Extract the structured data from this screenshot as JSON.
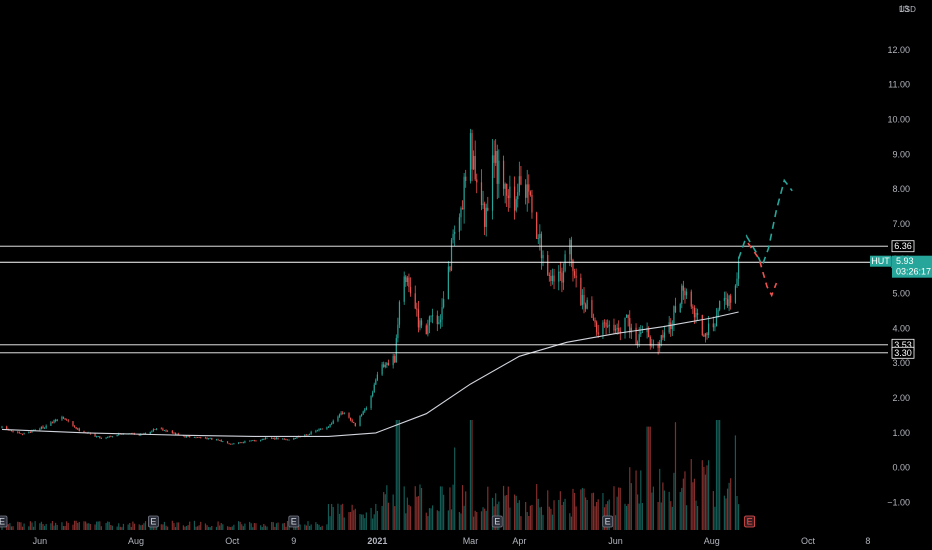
{
  "chart_data": {
    "type": "candlestick",
    "symbol": "HUT",
    "currency": "USD",
    "countdown": "03:26:17",
    "last_price": 5.93,
    "ylim": [
      -1.3,
      13.2
    ],
    "y_ticks": [
      12.0,
      11.0,
      10.0,
      9.0,
      8.0,
      7.0,
      6.0,
      5.0,
      4.0,
      3.0,
      2.0,
      1.0,
      0.0,
      -1.0
    ],
    "y_tick_labels": [
      "12.00",
      "11.00",
      "10.00",
      "9.00",
      "8.00",
      "7.00",
      "6.00",
      "5.00",
      "4.00",
      "3.00",
      "2.00",
      "1.00",
      "0.00",
      "−1.00"
    ],
    "top_clipped_label": "13",
    "x_ticks": [
      {
        "label": "Jun",
        "date": "2020-06-01"
      },
      {
        "label": "Aug",
        "date": "2020-08-01"
      },
      {
        "label": "Oct",
        "date": "2020-10-01"
      },
      {
        "label": "9",
        "date": "2020-11-09"
      },
      {
        "label": "2021",
        "date": "2021-01-01"
      },
      {
        "label": "Mar",
        "date": "2021-03-01"
      },
      {
        "label": "Apr",
        "date": "2021-04-01"
      },
      {
        "label": "Jun",
        "date": "2021-06-01"
      },
      {
        "label": "Aug",
        "date": "2021-08-01"
      },
      {
        "label": "Oct",
        "date": "2021-10-01"
      },
      {
        "label": "8",
        "date": "2021-11-08"
      }
    ],
    "horizontal_levels": [
      6.36,
      5.9,
      3.53,
      3.3
    ],
    "level_labels": [
      "6.36",
      "5.90",
      "3.53",
      "3.30"
    ],
    "price_path": [
      [
        "2020-05-08",
        1.15
      ],
      [
        "2020-05-20",
        0.95
      ],
      [
        "2020-06-05",
        1.2
      ],
      [
        "2020-06-15",
        1.45
      ],
      [
        "2020-06-25",
        1.1
      ],
      [
        "2020-07-10",
        0.85
      ],
      [
        "2020-07-25",
        1.0
      ],
      [
        "2020-08-05",
        0.95
      ],
      [
        "2020-08-15",
        1.15
      ],
      [
        "2020-08-30",
        0.9
      ],
      [
        "2020-09-15",
        0.85
      ],
      [
        "2020-09-30",
        0.7
      ],
      [
        "2020-10-10",
        0.75
      ],
      [
        "2020-10-25",
        0.85
      ],
      [
        "2020-11-05",
        0.8
      ],
      [
        "2020-11-20",
        1.0
      ],
      [
        "2020-12-01",
        1.2
      ],
      [
        "2020-12-10",
        1.6
      ],
      [
        "2020-12-18",
        1.2
      ],
      [
        "2020-12-28",
        2.0
      ],
      [
        "2021-01-03",
        3.0
      ],
      [
        "2021-01-08",
        2.9
      ],
      [
        "2021-01-12",
        3.2
      ],
      [
        "2021-01-16",
        5.2
      ],
      [
        "2021-01-20",
        5.6
      ],
      [
        "2021-01-25",
        4.5
      ],
      [
        "2021-01-30",
        3.8
      ],
      [
        "2021-02-04",
        4.3
      ],
      [
        "2021-02-09",
        4.1
      ],
      [
        "2021-02-14",
        5.2
      ],
      [
        "2021-02-19",
        7.0
      ],
      [
        "2021-02-24",
        7.6
      ],
      [
        "2021-02-28",
        9.5
      ],
      [
        "2021-03-04",
        8.6
      ],
      [
        "2021-03-10",
        7.0
      ],
      [
        "2021-03-16",
        8.8
      ],
      [
        "2021-03-22",
        8.2
      ],
      [
        "2021-03-28",
        7.7
      ],
      [
        "2021-04-03",
        8.2
      ],
      [
        "2021-04-09",
        7.4
      ],
      [
        "2021-04-15",
        6.2
      ],
      [
        "2021-04-21",
        5.6
      ],
      [
        "2021-04-27",
        5.5
      ],
      [
        "2021-05-03",
        6.2
      ],
      [
        "2021-05-09",
        5.0
      ],
      [
        "2021-05-15",
        4.6
      ],
      [
        "2021-05-21",
        4.0
      ],
      [
        "2021-05-27",
        4.2
      ],
      [
        "2021-06-02",
        3.9
      ],
      [
        "2021-06-08",
        4.2
      ],
      [
        "2021-06-14",
        3.7
      ],
      [
        "2021-06-20",
        4.0
      ],
      [
        "2021-06-26",
        3.4
      ],
      [
        "2021-07-02",
        3.8
      ],
      [
        "2021-07-08",
        4.4
      ],
      [
        "2021-07-14",
        5.2
      ],
      [
        "2021-07-20",
        4.5
      ],
      [
        "2021-07-26",
        3.9
      ],
      [
        "2021-08-01",
        4.0
      ],
      [
        "2021-08-07",
        4.7
      ],
      [
        "2021-08-13",
        4.9
      ],
      [
        "2021-08-18",
        5.93
      ]
    ],
    "moving_average": [
      [
        "2020-05-08",
        1.1
      ],
      [
        "2020-07-01",
        1.0
      ],
      [
        "2020-09-01",
        0.93
      ],
      [
        "2020-10-15",
        0.9
      ],
      [
        "2020-12-01",
        0.9
      ],
      [
        "2020-12-31",
        1.0
      ],
      [
        "2021-02-01",
        1.55
      ],
      [
        "2021-03-01",
        2.4
      ],
      [
        "2021-04-01",
        3.2
      ],
      [
        "2021-05-01",
        3.6
      ],
      [
        "2021-06-01",
        3.85
      ],
      [
        "2021-07-01",
        4.05
      ],
      [
        "2021-08-01",
        4.3
      ],
      [
        "2021-08-18",
        4.47
      ]
    ],
    "projection_up": [
      [
        "2021-08-18",
        6.0
      ],
      [
        "2021-08-23",
        6.65
      ],
      [
        "2021-08-29",
        6.2
      ],
      [
        "2021-09-02",
        5.8
      ],
      [
        "2021-09-06",
        6.3
      ],
      [
        "2021-09-11",
        7.4
      ],
      [
        "2021-09-16",
        8.25
      ],
      [
        "2021-09-21",
        7.95
      ]
    ],
    "projection_down": [
      [
        "2021-08-24",
        6.45
      ],
      [
        "2021-08-31",
        6.0
      ],
      [
        "2021-09-05",
        5.2
      ],
      [
        "2021-09-08",
        4.95
      ],
      [
        "2021-09-11",
        5.3
      ]
    ],
    "volume_scale_max": 10,
    "volume_spikes": [
      [
        "2021-01-14",
        10
      ],
      [
        "2021-02-20",
        7.5
      ],
      [
        "2021-03-01",
        10
      ],
      [
        "2021-06-22",
        9.4
      ],
      [
        "2021-07-10",
        9.8
      ],
      [
        "2021-08-05",
        10
      ],
      [
        "2021-08-15",
        8.6
      ]
    ],
    "event_markers": [
      "2020-05-08",
      "2020-08-12",
      "2020-11-09",
      "2021-03-18",
      "2021-05-27"
    ],
    "event_label": "E",
    "upcoming_event": "2021-08-25",
    "colors": {
      "background": "#000000",
      "up": "#26a69a",
      "down": "#ef5350",
      "moving_average": "#d1d4dc",
      "levels": "#ffffff",
      "projection_up": "#26a69a",
      "projection_down": "#ef5350",
      "price_tag": "#26a69a"
    }
  }
}
